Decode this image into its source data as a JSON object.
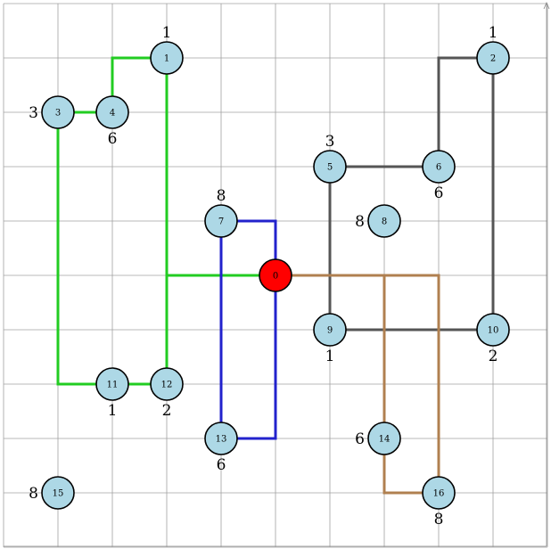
{
  "grid": {
    "cols": 10,
    "rows": 10
  },
  "colors": {
    "node_fill": "#add8e6",
    "root_fill": "#ff0000",
    "green": "#22cc22",
    "blue": "#2222cc",
    "gray": "#555555",
    "brown": "#b08050"
  },
  "nodes": [
    {
      "id": "0",
      "x": 5,
      "y": 5,
      "label": "",
      "label_pos": "",
      "root": true
    },
    {
      "id": "1",
      "x": 3,
      "y": 1,
      "label": "1",
      "label_pos": "above"
    },
    {
      "id": "2",
      "x": 9,
      "y": 1,
      "label": "1",
      "label_pos": "above"
    },
    {
      "id": "3",
      "x": 1,
      "y": 2,
      "label": "3",
      "label_pos": "left"
    },
    {
      "id": "4",
      "x": 2,
      "y": 2,
      "label": "6",
      "label_pos": "below"
    },
    {
      "id": "5",
      "x": 6,
      "y": 3,
      "label": "3",
      "label_pos": "above"
    },
    {
      "id": "6",
      "x": 8,
      "y": 3,
      "label": "6",
      "label_pos": "below"
    },
    {
      "id": "7",
      "x": 4,
      "y": 4,
      "label": "8",
      "label_pos": "above"
    },
    {
      "id": "8",
      "x": 7,
      "y": 4,
      "label": "8",
      "label_pos": "left"
    },
    {
      "id": "9",
      "x": 6,
      "y": 6,
      "label": "1",
      "label_pos": "below"
    },
    {
      "id": "10",
      "x": 9,
      "y": 6,
      "label": "2",
      "label_pos": "below"
    },
    {
      "id": "11",
      "x": 2,
      "y": 7,
      "label": "1",
      "label_pos": "below"
    },
    {
      "id": "12",
      "x": 3,
      "y": 7,
      "label": "2",
      "label_pos": "below"
    },
    {
      "id": "13",
      "x": 4,
      "y": 8,
      "label": "6",
      "label_pos": "below"
    },
    {
      "id": "14",
      "x": 7,
      "y": 8,
      "label": "6",
      "label_pos": "left"
    },
    {
      "id": "15",
      "x": 1,
      "y": 9,
      "label": "8",
      "label_pos": "left"
    },
    {
      "id": "16",
      "x": 8,
      "y": 9,
      "label": "8",
      "label_pos": "below"
    }
  ],
  "edges": [
    {
      "color": "green",
      "points": [
        [
          5,
          5
        ],
        [
          3,
          5
        ],
        [
          3,
          1
        ]
      ]
    },
    {
      "color": "green",
      "points": [
        [
          3,
          5
        ],
        [
          3,
          7
        ]
      ]
    },
    {
      "color": "green",
      "points": [
        [
          3,
          7
        ],
        [
          1,
          7
        ],
        [
          1,
          2
        ],
        [
          2,
          2
        ]
      ]
    },
    {
      "color": "green",
      "points": [
        [
          2,
          2
        ],
        [
          2,
          1
        ],
        [
          3,
          1
        ]
      ]
    },
    {
      "color": "blue",
      "points": [
        [
          4,
          4
        ],
        [
          5,
          4
        ],
        [
          5,
          8
        ],
        [
          4,
          8
        ],
        [
          4,
          4
        ]
      ]
    },
    {
      "color": "gray",
      "points": [
        [
          6,
          3
        ],
        [
          6,
          6
        ],
        [
          9,
          6
        ],
        [
          9,
          1
        ],
        [
          8,
          1
        ],
        [
          8,
          3
        ],
        [
          6,
          3
        ]
      ]
    },
    {
      "color": "brown",
      "points": [
        [
          5,
          5
        ],
        [
          8,
          5
        ],
        [
          8,
          9
        ]
      ]
    },
    {
      "color": "brown",
      "points": [
        [
          7,
          5
        ],
        [
          7,
          9
        ],
        [
          8,
          9
        ]
      ]
    }
  ]
}
